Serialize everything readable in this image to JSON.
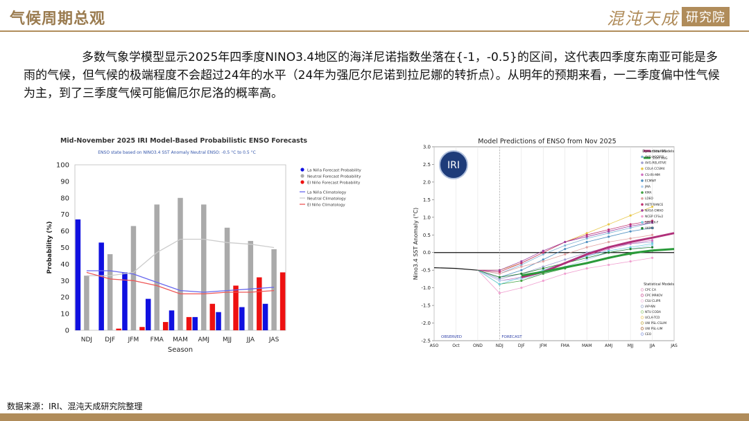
{
  "header": {
    "title": "气候周期总观",
    "logo_text": "混沌天成",
    "logo_box_text": "研究院"
  },
  "body": {
    "paragraph": "多数气象学模型显示2025年四季度NINO3.4地区的海洋尼诺指数坐落在{-1，-0.5}的区间，这代表四季度东南亚可能是多雨的气候，但气候的极端程度不会超过24年的水平（24年为强厄尔尼诺到拉尼娜的转折点）。从明年的预期来看，一二季度偏中性气候为主，到了三季度气候可能偏厄尔尼洛的概率高。"
  },
  "footer": {
    "source": "数据来源：IRI、混沌天成研究院整理"
  },
  "colors": {
    "gold": "#b08c5a",
    "lanina": "#1010e0",
    "neutral": "#aaaaaa",
    "elnino": "#ee1111"
  },
  "chart_data": [
    {
      "type": "bar",
      "title": "Mid-November 2025 IRI Model-Based Probabilistic ENSO Forecasts",
      "subtitle": "ENSO state based on NINO3.4 SST Anomaly Neutral ENSO: -0.5 °C to 0.5 °C",
      "xlabel": "Season",
      "ylabel": "Probability (%)",
      "ylim": [
        0,
        100
      ],
      "yticks": [
        0,
        10,
        20,
        30,
        40,
        50,
        60,
        70,
        80,
        90,
        100
      ],
      "categories": [
        "NDJ",
        "DJF",
        "JFM",
        "FMA",
        "MAM",
        "AMJ",
        "MJJ",
        "JJA",
        "JAS"
      ],
      "series": [
        {
          "name": "La Niña Forecast Probability",
          "color": "#1010e0",
          "values": [
            67,
            53,
            35,
            19,
            12,
            8,
            11,
            14,
            16
          ]
        },
        {
          "name": "Neutral Forecast Probability",
          "color": "#aaaaaa",
          "values": [
            33,
            46,
            63,
            76,
            80,
            76,
            62,
            54,
            49
          ]
        },
        {
          "name": "El Niño Forecast Probability",
          "color": "#ee1111",
          "values": [
            0,
            1,
            2,
            5,
            8,
            16,
            27,
            32,
            35
          ]
        }
      ],
      "climatology": [
        {
          "name": "La Niña Climatology",
          "color": "#6666ee",
          "values": [
            36,
            36,
            34,
            29,
            24,
            23,
            24,
            25,
            26
          ]
        },
        {
          "name": "Neutral Climatology",
          "color": "#cccccc",
          "values": [
            33,
            33,
            35,
            47,
            55,
            55,
            53,
            52,
            50
          ]
        },
        {
          "name": "El Niño Climatology",
          "color": "#ee5555",
          "values": [
            35,
            31,
            30,
            27,
            22,
            22,
            23,
            23,
            24
          ]
        }
      ],
      "legend_position": "top-right"
    },
    {
      "type": "line",
      "title": "Model Predictions of ENSO from Nov 2025",
      "ylabel": "Nino3.4 SST Anomaly (°C)",
      "ylim": [
        -2.5,
        3.0
      ],
      "yticks": [
        "-2.5",
        "-2.0",
        "-1.5",
        "-1.0",
        "-0.5",
        "0.0",
        "0.5",
        "1.0",
        "1.5",
        "2.0",
        "2.5",
        "3.0"
      ],
      "categories": [
        "ASO",
        "Oct",
        "OND",
        "NDJ",
        "DJF",
        "JFM",
        "FMA",
        "MAM",
        "AMJ",
        "MJJ",
        "JJA",
        "JAS"
      ],
      "observed_label": "OBSERVED",
      "forecast_label": "FORECAST",
      "observed": [
        -0.43,
        -0.45,
        -0.5
      ],
      "dyn_avg": {
        "name": "DYN AVG",
        "color": "#b0307a",
        "values": [
          -0.7,
          -0.55,
          -0.3,
          -0.05,
          0.15,
          0.3,
          0.42,
          0.55
        ]
      },
      "stat_avg": {
        "name": "STAT AVG",
        "color": "#2a9a3a",
        "values": [
          -0.65,
          -0.55,
          -0.42,
          -0.3,
          -0.15,
          -0.02,
          0.06,
          0.1
        ]
      },
      "models": [
        {
          "name": "AVG-ACCESS",
          "color": "#7fb3d5",
          "values": [
            -0.6,
            -0.35,
            -0.05,
            0.2,
            0.4,
            0.55,
            0.7,
            0.85
          ]
        },
        {
          "name": "AVG-RELATIVE",
          "color": "#a0a0d0",
          "values": [
            -0.75,
            -0.6,
            -0.4,
            -0.2,
            0.0,
            0.15,
            0.25,
            0.3
          ]
        },
        {
          "name": "COLA CCSM4",
          "color": "#e8c84a",
          "values": [
            -0.5,
            -0.3,
            0.0,
            0.3,
            0.55,
            0.8,
            1.05,
            1.3
          ]
        },
        {
          "name": "CS-IRI-MM",
          "color": "#d070c0",
          "values": [
            -0.8,
            -0.7,
            -0.5,
            -0.3,
            -0.1,
            0.1,
            0.25,
            0.35
          ]
        },
        {
          "name": "ECMWF",
          "color": "#5090c0",
          "values": [
            -0.7,
            -0.5,
            -0.2,
            0.1,
            0.3,
            0.45,
            0.6,
            0.7
          ]
        },
        {
          "name": "JMA",
          "color": "#b0d0f0",
          "values": [
            -0.8,
            -0.75,
            -0.6,
            -0.4,
            -0.2,
            0.0,
            0.1,
            0.2
          ]
        },
        {
          "name": "KMA",
          "color": "#40a040",
          "values": [
            -0.9,
            -0.8,
            -0.6,
            -0.45,
            -0.3,
            -0.15,
            -0.05,
            0.05
          ]
        },
        {
          "name": "LDEO",
          "color": "#e0a0a0",
          "values": [
            -0.6,
            -0.4,
            -0.25,
            -0.05,
            0.15,
            0.3,
            0.4,
            0.5
          ]
        },
        {
          "name": "METFRANCE",
          "color": "#c03070",
          "values": [
            -0.55,
            -0.3,
            0.0,
            0.3,
            0.5,
            0.65,
            0.8,
            0.9
          ]
        },
        {
          "name": "NASA GMAO",
          "color": "#a040a0",
          "values": [
            -0.5,
            -0.25,
            0.05,
            0.3,
            0.45,
            0.6,
            0.75,
            0.85
          ]
        },
        {
          "name": "NCEP CFSv2",
          "color": "#f0a0d0",
          "values": [
            -1.15,
            -1.0,
            -0.8,
            -0.6,
            -0.45,
            -0.35,
            -0.25,
            -0.15
          ]
        },
        {
          "name": "SINTEX-F",
          "color": "#70d0e0",
          "values": [
            -0.9,
            -0.7,
            -0.5,
            -0.3,
            -0.1,
            0.05,
            0.15,
            0.25
          ]
        },
        {
          "name": "UKMO",
          "color": "#208030",
          "values": [
            -0.7,
            -0.6,
            -0.45,
            -0.3,
            -0.15,
            0.0,
            0.1,
            0.15
          ]
        }
      ],
      "dynamical_label": "Dynamical Models",
      "statistical_label": "Statistical Models",
      "statistical_models": [
        {
          "name": "CPC CA",
          "color": "#e8a0c8"
        },
        {
          "name": "CPC MRKOV",
          "color": "#d060a0"
        },
        {
          "name": "CSU CLIPR",
          "color": "#f0c0e0"
        },
        {
          "name": "IAP-NN",
          "color": "#a0b0d0"
        },
        {
          "name": "NTU CODA",
          "color": "#a0d080"
        },
        {
          "name": "UCLA-TCD",
          "color": "#f0d070"
        },
        {
          "name": "UW PSL-CSLIM",
          "color": "#c8b050"
        },
        {
          "name": "UW PSL-LIM",
          "color": "#b07040"
        },
        {
          "name": "CEO",
          "color": "#90a0e0"
        }
      ],
      "logo": "IRI",
      "legend_position": "right"
    }
  ]
}
